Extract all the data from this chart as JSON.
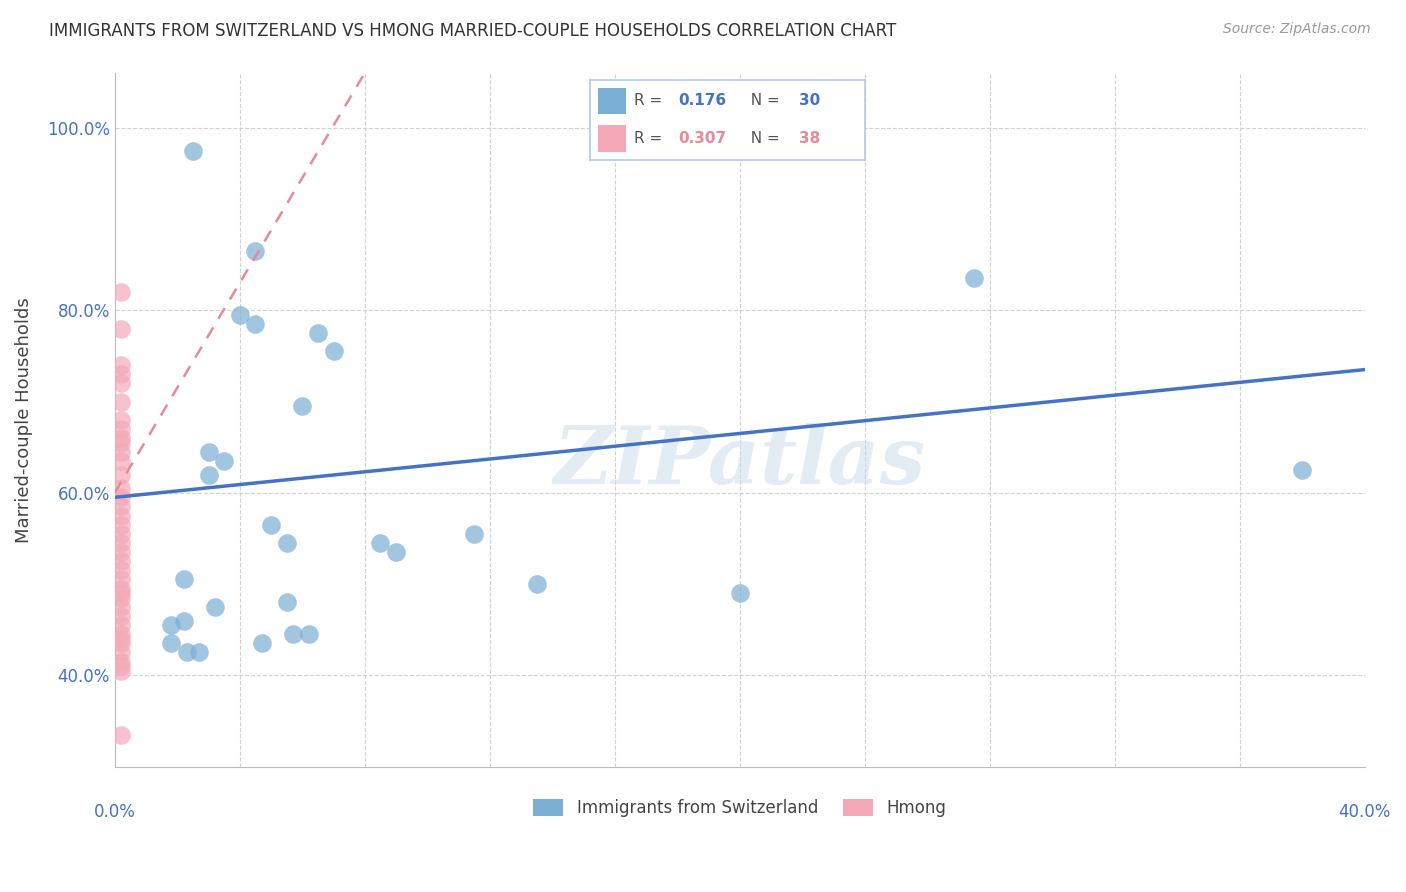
{
  "title": "IMMIGRANTS FROM SWITZERLAND VS HMONG MARRIED-COUPLE HOUSEHOLDS CORRELATION CHART",
  "source": "Source: ZipAtlas.com",
  "ylabel": "Married-couple Households",
  "ytick_labels": [
    "40.0%",
    "60.0%",
    "80.0%",
    "100.0%"
  ],
  "ytick_values": [
    0.4,
    0.6,
    0.8,
    1.0
  ],
  "xlim": [
    0.0,
    0.4
  ],
  "ylim": [
    0.3,
    1.06
  ],
  "legend1_R": "0.176",
  "legend1_N": "30",
  "legend2_R": "0.307",
  "legend2_N": "38",
  "legend_label1": "Immigrants from Switzerland",
  "legend_label2": "Hmong",
  "blue_color": "#7BAFD4",
  "pink_color": "#F4A8B8",
  "blue_line_color": "#4472C4",
  "pink_line_color": "#E8889A",
  "watermark": "ZIPatlas",
  "blue_scatter_x": [
    0.025,
    0.045,
    0.04,
    0.045,
    0.065,
    0.07,
    0.06,
    0.03,
    0.035,
    0.03,
    0.05,
    0.055,
    0.085,
    0.09,
    0.115,
    0.135,
    0.275,
    0.38,
    0.2,
    0.055,
    0.032,
    0.022,
    0.018,
    0.057,
    0.062,
    0.047,
    0.018,
    0.023,
    0.027,
    0.022
  ],
  "blue_scatter_y": [
    0.975,
    0.865,
    0.795,
    0.785,
    0.775,
    0.755,
    0.695,
    0.645,
    0.635,
    0.62,
    0.565,
    0.545,
    0.545,
    0.535,
    0.555,
    0.5,
    0.835,
    0.625,
    0.49,
    0.48,
    0.475,
    0.46,
    0.455,
    0.445,
    0.445,
    0.435,
    0.435,
    0.425,
    0.425,
    0.505
  ],
  "pink_scatter_x": [
    0.002,
    0.002,
    0.002,
    0.002,
    0.002,
    0.002,
    0.002,
    0.002,
    0.002,
    0.002,
    0.002,
    0.002,
    0.002,
    0.002,
    0.002,
    0.002,
    0.002,
    0.002,
    0.002,
    0.002,
    0.002,
    0.002,
    0.002,
    0.002,
    0.002,
    0.002,
    0.002,
    0.002,
    0.002,
    0.002,
    0.002,
    0.002,
    0.002,
    0.002,
    0.002,
    0.002,
    0.002,
    0.002
  ],
  "pink_scatter_y": [
    0.82,
    0.78,
    0.74,
    0.73,
    0.72,
    0.7,
    0.68,
    0.67,
    0.66,
    0.655,
    0.645,
    0.635,
    0.62,
    0.605,
    0.595,
    0.585,
    0.575,
    0.565,
    0.555,
    0.545,
    0.535,
    0.525,
    0.515,
    0.505,
    0.495,
    0.49,
    0.485,
    0.475,
    0.465,
    0.455,
    0.445,
    0.44,
    0.435,
    0.425,
    0.415,
    0.41,
    0.405,
    0.335
  ],
  "blue_line_x0": 0.0,
  "blue_line_y0": 0.595,
  "blue_line_x1": 0.4,
  "blue_line_y1": 0.735,
  "pink_line_x0": 0.0,
  "pink_line_y0": 0.6,
  "pink_line_x1": 0.08,
  "pink_line_y1": 1.06,
  "background_color": "#FFFFFF",
  "grid_color": "#CCCCCC"
}
